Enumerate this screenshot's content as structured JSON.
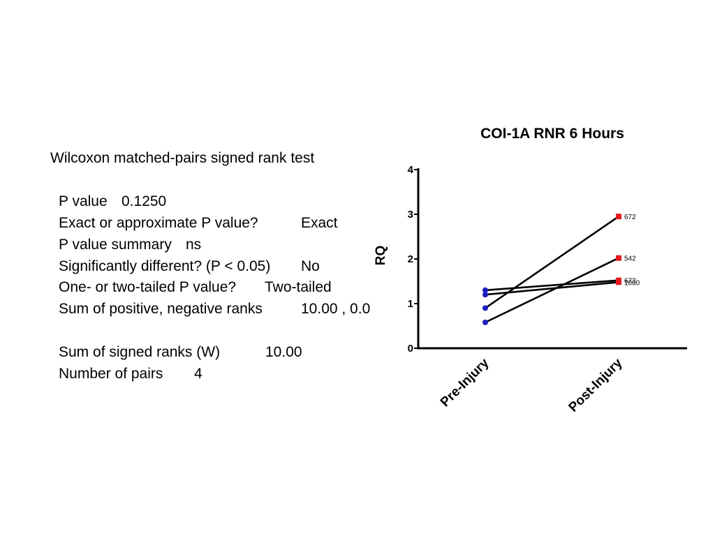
{
  "stats": {
    "heading": "Wilcoxon matched-pairs signed rank test",
    "rows": [
      {
        "label": "P value",
        "value": "0.1250"
      },
      {
        "label": "Exact or approximate P value?",
        "value": "Exact"
      },
      {
        "label": "P value summary",
        "value": "ns"
      },
      {
        "label": "Significantly different? (P < 0.05)",
        "value": "No"
      },
      {
        "label": "One- or two-tailed P value?",
        "value": "Two-tailed"
      },
      {
        "label": "Sum of positive, negative ranks",
        "value": "10.00 , 0.0"
      },
      {
        "label": "Sum of signed ranks (W)",
        "value": "10.00"
      },
      {
        "label": "Number of pairs",
        "value": "4"
      }
    ]
  },
  "chart_data": {
    "type": "line",
    "title": "COI-1A RNR 6 Hours",
    "xlabel": "",
    "ylabel": "RQ",
    "categories": [
      "Pre-Injury",
      "Post-Injury"
    ],
    "ylim": [
      0,
      4
    ],
    "yticks": [
      "0",
      "1",
      "2",
      "3",
      "4"
    ],
    "grid": false,
    "pre_marker_color": "#1f1fbf",
    "post_marker_color": "#e8191e",
    "line_color": "#000000",
    "series": [
      {
        "name": "672",
        "values": [
          0.9,
          2.95
        ]
      },
      {
        "name": "542",
        "values": [
          0.58,
          2.02
        ]
      },
      {
        "name": "673",
        "values": [
          1.3,
          1.52
        ]
      },
      {
        "name": "1080",
        "values": [
          1.2,
          1.48
        ]
      }
    ]
  }
}
